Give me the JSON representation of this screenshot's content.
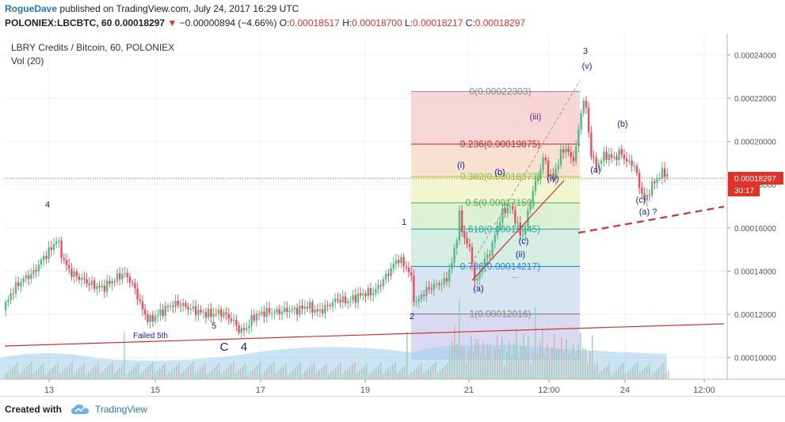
{
  "header": {
    "author": "RogueDave",
    "published": "published on TradingView.com, July 24, 2017 16:29 UTC",
    "symbol": "POLONIEX:LBCBTC, 60",
    "last": "0.00018297",
    "change": "−0.00000894 (−4.66%)",
    "o_label": "O:",
    "o": "0.00018517",
    "h_label": "H:",
    "h": "0.00018700",
    "l_label": "L:",
    "l": "0.00018217",
    "c_label": "C:",
    "c": "0.00018297"
  },
  "legend": {
    "title": "LBRY Credits / Bitcoin, 60, POLONIEX",
    "vol": "Vol (20)"
  },
  "footer": {
    "created": "Created with",
    "brand": "TradingView"
  },
  "colors": {
    "up": "#53b987",
    "down": "#eb4d5c",
    "trend": "#d32f2f",
    "wave": "#1a1aa8",
    "price_line": "#e0302a",
    "axis_text": "#555555"
  },
  "chart_data": {
    "type": "candlestick",
    "ylim": [
      9e-05,
      0.00025
    ],
    "y_ticks": [
      "0.00010000",
      "0.00012000",
      "0.00014000",
      "0.00016000",
      "0.00018000",
      "0.00020000",
      "0.00022000",
      "0.00024000"
    ],
    "x_ticks": [
      "13",
      "15",
      "17",
      "19",
      "21",
      "12:00",
      "24",
      "12:00"
    ],
    "current_price": "0.00018297",
    "countdown": "30:17",
    "path": [
      [
        0,
        0.000122
      ],
      [
        12,
        0.000131
      ],
      [
        24,
        0.000136
      ],
      [
        38,
        0.000139
      ],
      [
        50,
        0.000146
      ],
      [
        60,
        0.00015
      ],
      [
        68,
        0.000155
      ],
      [
        76,
        0.000145
      ],
      [
        86,
        0.000139
      ],
      [
        96,
        0.000137
      ],
      [
        110,
        0.000134
      ],
      [
        125,
        0.000132
      ],
      [
        140,
        0.000136
      ],
      [
        152,
        0.000139
      ],
      [
        160,
        0.000136
      ],
      [
        168,
        0.00013
      ],
      [
        176,
        0.000122
      ],
      [
        184,
        0.000117
      ],
      [
        196,
        0.00012
      ],
      [
        210,
        0.000124
      ],
      [
        222,
        0.000125
      ],
      [
        234,
        0.000123
      ],
      [
        248,
        0.000121
      ],
      [
        262,
        0.00012
      ],
      [
        276,
        0.000121
      ],
      [
        290,
        0.000117
      ],
      [
        300,
        0.000112
      ],
      [
        308,
        0.000114
      ],
      [
        316,
        0.000119
      ],
      [
        330,
        0.000121
      ],
      [
        345,
        0.000121
      ],
      [
        360,
        0.000122
      ],
      [
        372,
        0.000122
      ],
      [
        384,
        0.000124
      ],
      [
        398,
        0.000121
      ],
      [
        410,
        0.000124
      ],
      [
        422,
        0.000127
      ],
      [
        434,
        0.000126
      ],
      [
        446,
        0.000128
      ],
      [
        458,
        0.00013
      ],
      [
        468,
        0.00013
      ],
      [
        478,
        0.000135
      ],
      [
        488,
        0.00014
      ],
      [
        498,
        0.000146
      ],
      [
        506,
        0.000143
      ],
      [
        514,
        0.000139
      ],
      [
        520,
        0.000124
      ],
      [
        528,
        0.000129
      ],
      [
        538,
        0.000132
      ],
      [
        548,
        0.000134
      ],
      [
        558,
        0.000135
      ],
      [
        566,
        0.000143
      ],
      [
        572,
        0.000154
      ],
      [
        576,
        0.000166
      ],
      [
        580,
        0.000157
      ],
      [
        586,
        0.000153
      ],
      [
        592,
        0.000145
      ],
      [
        596,
        0.000133
      ],
      [
        602,
        0.00014
      ],
      [
        608,
        0.000145
      ],
      [
        616,
        0.00015
      ],
      [
        624,
        0.000161
      ],
      [
        632,
        0.000168
      ],
      [
        640,
        0.00017
      ],
      [
        648,
        0.000163
      ],
      [
        654,
        0.000155
      ],
      [
        660,
        0.000162
      ],
      [
        668,
        0.000177
      ],
      [
        676,
        0.000184
      ],
      [
        682,
        0.000193
      ],
      [
        688,
        0.000186
      ],
      [
        694,
        0.000182
      ],
      [
        700,
        0.00019
      ],
      [
        706,
        0.000196
      ],
      [
        712,
        0.000197
      ],
      [
        718,
        0.00019
      ],
      [
        724,
        0.000198
      ],
      [
        730,
        0.000215
      ],
      [
        734,
        0.000221
      ],
      [
        738,
        0.000208
      ],
      [
        742,
        0.000195
      ],
      [
        748,
        0.000188
      ],
      [
        754,
        0.000191
      ],
      [
        760,
        0.000194
      ],
      [
        770,
        0.000192
      ],
      [
        780,
        0.000195
      ],
      [
        788,
        0.00019
      ],
      [
        796,
        0.00019
      ],
      [
        802,
        0.000181
      ],
      [
        810,
        0.000172
      ],
      [
        818,
        0.000179
      ],
      [
        826,
        0.000183
      ],
      [
        834,
        0.000186
      ],
      [
        842,
        0.000183
      ]
    ],
    "fib_levels": [
      {
        "ratio": "0",
        "value": "0.00022303"
      },
      {
        "ratio": "0.236",
        "value": "0.00019875"
      },
      {
        "ratio": "0.382",
        "value": "0.00018373"
      },
      {
        "ratio": "0.5",
        "value": "0.00017159"
      },
      {
        "ratio": "0.618",
        "value": "0.00015945"
      },
      {
        "ratio": "0.786",
        "value": "0.00014217"
      },
      {
        "ratio": "1",
        "value": "0.00012016"
      }
    ],
    "wave_labels": [
      "4",
      "5",
      "C",
      "4",
      "1",
      "2",
      "(i)",
      "(ii)",
      "(iii)",
      "(iv)",
      "(v)",
      "3",
      "(a)",
      "(b)",
      "(c)",
      "(a)",
      "(b)",
      "(c)",
      "(a) ?"
    ],
    "annotations": [
      "Failed 5th",
      "..."
    ]
  }
}
